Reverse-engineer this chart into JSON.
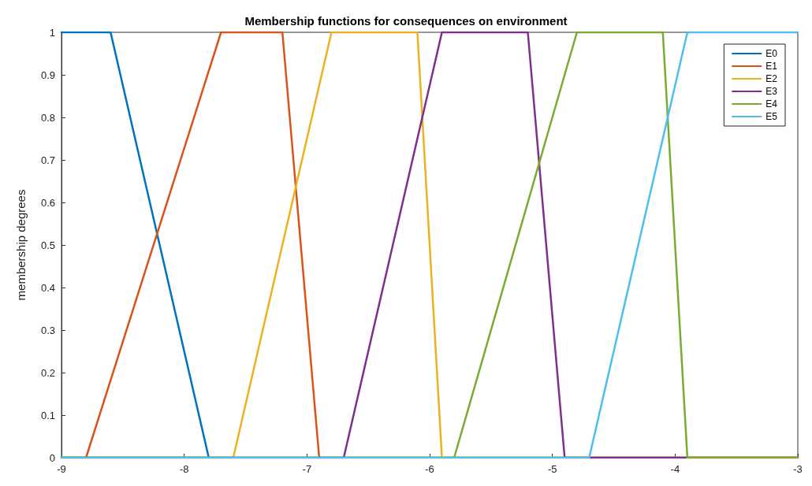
{
  "chart_data": {
    "type": "line",
    "title": "Membership functions for consequences on environment",
    "ylabel": "membership degrees",
    "xlim": [
      -9,
      -3
    ],
    "xticks": [
      -9,
      -8,
      -7,
      -6,
      -5,
      -4,
      -3
    ],
    "ylim": [
      0,
      1
    ],
    "yticks": [
      0,
      0.1,
      0.2,
      0.3,
      0.4,
      0.5,
      0.6,
      0.7,
      0.8,
      0.9,
      1
    ],
    "grid": false,
    "legend": "top right",
    "marker": "none",
    "line_style": "solid",
    "series": [
      {
        "name": "E0",
        "color": "#0072bd",
        "x": [
          -9,
          -8.6,
          -7.8
        ],
        "values": [
          1,
          1,
          0
        ]
      },
      {
        "name": "E1",
        "color": "#d95319",
        "x": [
          -9,
          -8.8,
          -7.7,
          -7.2,
          -6.9,
          -3
        ],
        "values": [
          0,
          0,
          1,
          1,
          0,
          0
        ]
      },
      {
        "name": "E2",
        "color": "#edb120",
        "x": [
          -9,
          -7.6,
          -6.8,
          -6.1,
          -5.9,
          -3
        ],
        "values": [
          0,
          0,
          1,
          1,
          0,
          0
        ]
      },
      {
        "name": "E3",
        "color": "#7e2f8e",
        "x": [
          -9,
          -6.7,
          -5.9,
          -5.2,
          -4.9,
          -3
        ],
        "values": [
          0,
          0,
          1,
          1,
          0,
          0
        ]
      },
      {
        "name": "E4",
        "color": "#77ac30",
        "x": [
          -9,
          -5.8,
          -4.8,
          -4.1,
          -3.9,
          -3
        ],
        "values": [
          0,
          0,
          1,
          1,
          0,
          0
        ]
      },
      {
        "name": "E5",
        "color": "#4dbeee",
        "x": [
          -9,
          -4.7,
          -3.9,
          -3
        ],
        "values": [
          0,
          0,
          1,
          1
        ]
      }
    ]
  }
}
